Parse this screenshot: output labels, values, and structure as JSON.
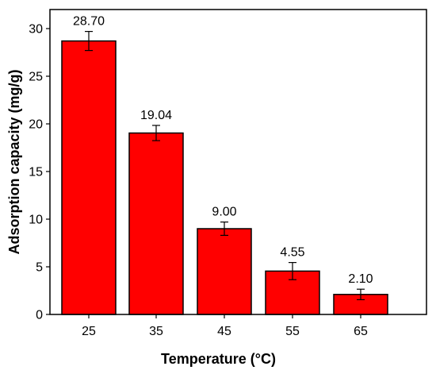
{
  "chart_data": {
    "type": "bar",
    "title": "",
    "xlabel": "Temperature (°C)",
    "ylabel": "Adsorption capacity (mg/g)",
    "categories": [
      "25",
      "35",
      "45",
      "55",
      "65"
    ],
    "values": [
      28.7,
      19.04,
      9.0,
      4.55,
      2.1
    ],
    "value_labels": [
      "28.70",
      "19.04",
      "9.00",
      "4.55",
      "2.10"
    ],
    "error": [
      1.0,
      0.8,
      0.7,
      0.9,
      0.55
    ],
    "ylim": [
      0,
      32
    ],
    "yticks": [
      0,
      5,
      10,
      15,
      20,
      25,
      30
    ],
    "grid": false,
    "bar_color": "#ff0000",
    "edge_color": "#000000"
  }
}
